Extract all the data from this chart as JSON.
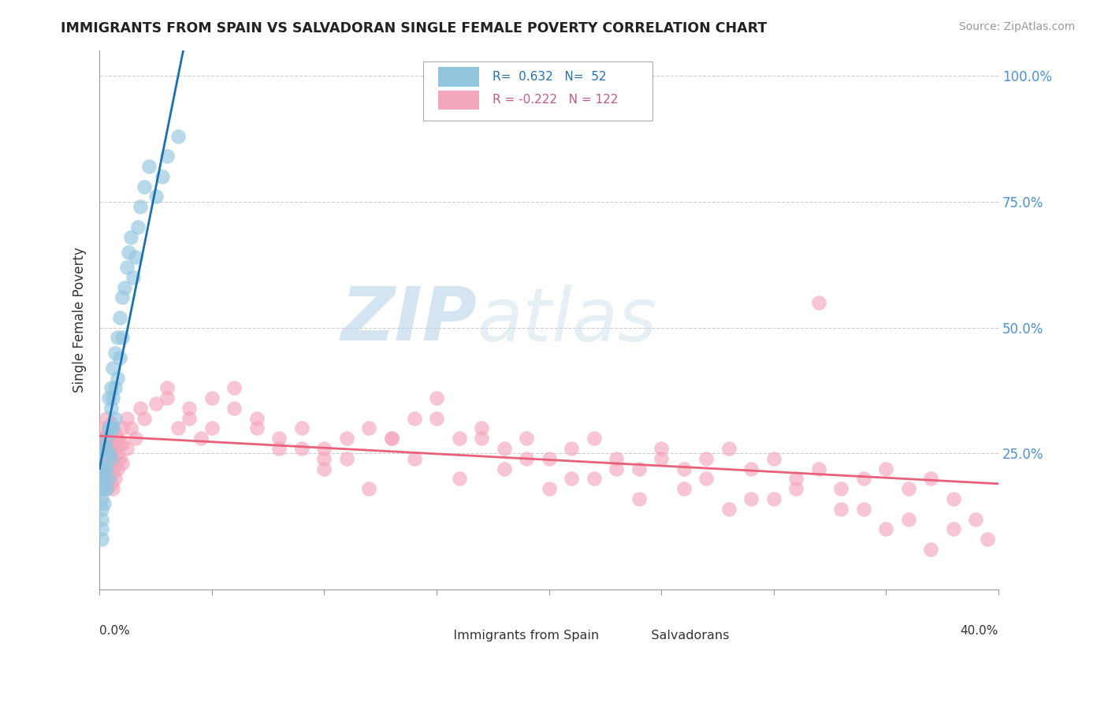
{
  "title": "IMMIGRANTS FROM SPAIN VS SALVADORAN SINGLE FEMALE POVERTY CORRELATION CHART",
  "source": "Source: ZipAtlas.com",
  "ylabel": "Single Female Poverty",
  "xlim": [
    0.0,
    0.4
  ],
  "ylim": [
    -0.02,
    1.05
  ],
  "blue_color": "#92c5de",
  "pink_color": "#f4a6bc",
  "blue_line_color": "#1a6faf",
  "pink_line_color": "#e8607a",
  "background_color": "#ffffff",
  "blue_x": [
    0.001,
    0.001,
    0.001,
    0.001,
    0.001,
    0.001,
    0.001,
    0.001,
    0.002,
    0.002,
    0.002,
    0.002,
    0.002,
    0.002,
    0.003,
    0.003,
    0.003,
    0.003,
    0.004,
    0.004,
    0.004,
    0.004,
    0.005,
    0.005,
    0.005,
    0.005,
    0.006,
    0.006,
    0.006,
    0.007,
    0.007,
    0.007,
    0.008,
    0.008,
    0.009,
    0.009,
    0.01,
    0.01,
    0.011,
    0.012,
    0.013,
    0.014,
    0.015,
    0.016,
    0.017,
    0.018,
    0.02,
    0.022,
    0.025,
    0.028,
    0.03,
    0.035
  ],
  "blue_y": [
    0.22,
    0.2,
    0.18,
    0.16,
    0.14,
    0.12,
    0.1,
    0.08,
    0.26,
    0.24,
    0.22,
    0.2,
    0.18,
    0.15,
    0.28,
    0.26,
    0.22,
    0.18,
    0.36,
    0.3,
    0.25,
    0.2,
    0.38,
    0.34,
    0.3,
    0.24,
    0.42,
    0.36,
    0.3,
    0.45,
    0.38,
    0.32,
    0.48,
    0.4,
    0.52,
    0.44,
    0.56,
    0.48,
    0.58,
    0.62,
    0.65,
    0.68,
    0.6,
    0.64,
    0.7,
    0.74,
    0.78,
    0.82,
    0.76,
    0.8,
    0.84,
    0.88
  ],
  "pink_x": [
    0.001,
    0.001,
    0.001,
    0.002,
    0.002,
    0.002,
    0.002,
    0.003,
    0.003,
    0.003,
    0.003,
    0.003,
    0.004,
    0.004,
    0.004,
    0.004,
    0.005,
    0.005,
    0.005,
    0.005,
    0.005,
    0.006,
    0.006,
    0.006,
    0.006,
    0.006,
    0.007,
    0.007,
    0.007,
    0.007,
    0.008,
    0.008,
    0.008,
    0.009,
    0.009,
    0.01,
    0.01,
    0.01,
    0.012,
    0.012,
    0.014,
    0.016,
    0.018,
    0.02,
    0.025,
    0.03,
    0.035,
    0.04,
    0.045,
    0.05,
    0.06,
    0.07,
    0.08,
    0.09,
    0.1,
    0.11,
    0.12,
    0.13,
    0.14,
    0.15,
    0.16,
    0.17,
    0.18,
    0.19,
    0.2,
    0.21,
    0.22,
    0.23,
    0.24,
    0.25,
    0.26,
    0.27,
    0.28,
    0.29,
    0.3,
    0.31,
    0.32,
    0.33,
    0.34,
    0.35,
    0.36,
    0.37,
    0.38,
    0.39,
    0.1,
    0.12,
    0.14,
    0.16,
    0.18,
    0.2,
    0.22,
    0.24,
    0.26,
    0.28,
    0.3,
    0.32,
    0.34,
    0.36,
    0.38,
    0.395,
    0.06,
    0.08,
    0.1,
    0.03,
    0.04,
    0.05,
    0.07,
    0.09,
    0.11,
    0.13,
    0.15,
    0.17,
    0.19,
    0.21,
    0.23,
    0.25,
    0.27,
    0.29,
    0.31,
    0.33,
    0.35,
    0.37
  ],
  "pink_y": [
    0.28,
    0.25,
    0.22,
    0.3,
    0.28,
    0.24,
    0.2,
    0.32,
    0.28,
    0.25,
    0.22,
    0.18,
    0.3,
    0.27,
    0.24,
    0.2,
    0.31,
    0.28,
    0.25,
    0.22,
    0.19,
    0.3,
    0.27,
    0.24,
    0.21,
    0.18,
    0.29,
    0.26,
    0.23,
    0.2,
    0.28,
    0.25,
    0.22,
    0.27,
    0.24,
    0.3,
    0.27,
    0.23,
    0.32,
    0.26,
    0.3,
    0.28,
    0.34,
    0.32,
    0.35,
    0.36,
    0.3,
    0.32,
    0.28,
    0.3,
    0.38,
    0.32,
    0.28,
    0.3,
    0.26,
    0.28,
    0.3,
    0.28,
    0.32,
    0.36,
    0.28,
    0.3,
    0.26,
    0.28,
    0.24,
    0.26,
    0.28,
    0.24,
    0.22,
    0.26,
    0.22,
    0.24,
    0.26,
    0.22,
    0.24,
    0.2,
    0.22,
    0.18,
    0.2,
    0.22,
    0.18,
    0.2,
    0.16,
    0.12,
    0.22,
    0.18,
    0.24,
    0.2,
    0.22,
    0.18,
    0.2,
    0.16,
    0.18,
    0.14,
    0.16,
    0.55,
    0.14,
    0.12,
    0.1,
    0.08,
    0.34,
    0.26,
    0.24,
    0.38,
    0.34,
    0.36,
    0.3,
    0.26,
    0.24,
    0.28,
    0.32,
    0.28,
    0.24,
    0.2,
    0.22,
    0.24,
    0.2,
    0.16,
    0.18,
    0.14,
    0.1,
    0.06
  ]
}
